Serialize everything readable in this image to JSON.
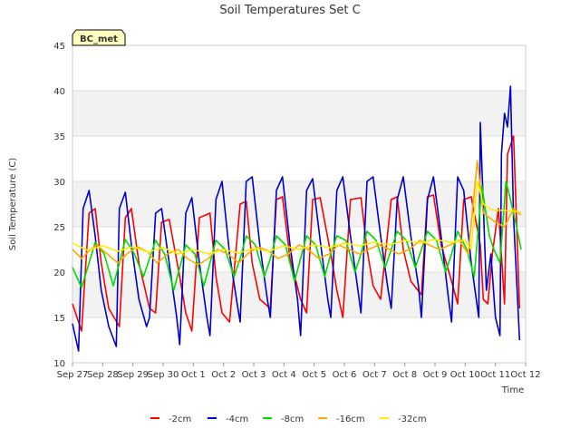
{
  "chart_data": {
    "type": "line",
    "title": "Soil Temperatures Set C",
    "xlabel": "Time",
    "ylabel": "Soil Temperature (C)",
    "ylim": [
      10,
      45
    ],
    "y_ticks": [
      10,
      15,
      20,
      25,
      30,
      35,
      40,
      45
    ],
    "x_tick_labels": [
      "Sep 27",
      "Sep 28",
      "Sep 29",
      "Sep 30",
      "Oct 1",
      "Oct 2",
      "Oct 3",
      "Oct 4",
      "Oct 5",
      "Oct 6",
      "Oct 7",
      "Oct 8",
      "Oct 9",
      "Oct 10",
      "Oct 11",
      "Oct 12"
    ],
    "xlim_days": [
      0,
      15
    ],
    "station_label": "BC_met",
    "grid": true,
    "legend_position": "bottom",
    "colors": {
      "band": "#f2f2f2",
      "grid": "#dddddd",
      "label_bg": "#ffffc0",
      "label_text": "#aa0000"
    },
    "series": [
      {
        "name": "-2cm",
        "color": "#ff0000",
        "x": [
          0.0,
          0.3,
          0.55,
          0.75,
          0.95,
          1.2,
          1.55,
          1.75,
          1.95,
          2.2,
          2.55,
          2.75,
          2.95,
          3.2,
          3.55,
          3.75,
          3.95,
          4.2,
          4.55,
          4.75,
          4.95,
          5.2,
          5.55,
          5.75,
          5.95,
          6.2,
          6.55,
          6.75,
          6.95,
          7.2,
          7.55,
          7.75,
          7.95,
          8.2,
          8.55,
          8.75,
          8.95,
          9.2,
          9.55,
          9.75,
          9.95,
          10.2,
          10.55,
          10.75,
          10.95,
          11.2,
          11.55,
          11.75,
          11.95,
          12.2,
          12.55,
          12.75,
          12.95,
          13.2,
          13.5,
          13.6,
          13.75,
          13.9,
          14.1,
          14.3,
          14.4,
          14.6,
          14.8
        ],
        "y": [
          16.5,
          13.5,
          26.5,
          27.0,
          21.0,
          16.0,
          14.0,
          26.0,
          27.0,
          21.0,
          16.0,
          15.5,
          25.5,
          25.8,
          19.5,
          15.5,
          13.5,
          26.0,
          26.5,
          19.5,
          15.5,
          14.5,
          27.5,
          27.8,
          21.0,
          17.0,
          16.0,
          28.0,
          28.3,
          21.5,
          17.0,
          15.5,
          28.0,
          28.2,
          22.0,
          18.0,
          15.0,
          28.0,
          28.2,
          22.5,
          18.5,
          17.0,
          28.0,
          28.3,
          22.5,
          19.0,
          17.5,
          28.3,
          28.5,
          23.0,
          19.0,
          16.5,
          28.0,
          28.3,
          23.0,
          17.0,
          16.5,
          22.0,
          27.0,
          16.5,
          33.0,
          35.0,
          16.0
        ]
      },
      {
        "name": "-4cm",
        "color": "#0000cc",
        "x": [
          0.0,
          0.2,
          0.35,
          0.55,
          0.75,
          0.95,
          1.2,
          1.45,
          1.55,
          1.75,
          1.95,
          2.2,
          2.45,
          2.55,
          2.75,
          2.95,
          3.2,
          3.45,
          3.55,
          3.75,
          3.95,
          4.2,
          4.45,
          4.55,
          4.75,
          4.95,
          5.2,
          5.45,
          5.55,
          5.75,
          5.95,
          6.2,
          6.45,
          6.55,
          6.75,
          6.95,
          7.2,
          7.45,
          7.55,
          7.75,
          7.95,
          8.2,
          8.45,
          8.55,
          8.75,
          8.95,
          9.2,
          9.45,
          9.55,
          9.75,
          9.95,
          10.2,
          10.45,
          10.55,
          10.75,
          10.95,
          11.2,
          11.45,
          11.55,
          11.75,
          11.95,
          12.2,
          12.45,
          12.55,
          12.75,
          12.95,
          13.2,
          13.45,
          13.5,
          13.7,
          13.85,
          14.0,
          14.15,
          14.2,
          14.3,
          14.4,
          14.5,
          14.6,
          14.8
        ],
        "y": [
          14.3,
          11.3,
          27.0,
          29.0,
          24.0,
          18.0,
          14.0,
          11.8,
          27.0,
          28.8,
          23.0,
          17.0,
          14.0,
          15.0,
          26.5,
          27.0,
          21.0,
          15.0,
          12.0,
          26.5,
          28.2,
          21.0,
          15.0,
          13.0,
          28.0,
          30.0,
          22.0,
          16.5,
          14.5,
          30.0,
          30.5,
          23.0,
          17.0,
          15.0,
          29.0,
          30.5,
          23.0,
          17.0,
          13.0,
          29.0,
          30.3,
          23.5,
          17.0,
          15.0,
          29.0,
          30.5,
          24.0,
          18.0,
          15.5,
          30.0,
          30.5,
          24.0,
          18.0,
          16.0,
          28.0,
          30.5,
          24.0,
          18.5,
          15.0,
          28.0,
          30.5,
          24.0,
          17.0,
          14.5,
          30.5,
          29.0,
          21.0,
          15.0,
          36.5,
          18.0,
          22.0,
          15.0,
          13.0,
          33.0,
          37.5,
          36.0,
          40.5,
          26.0,
          12.5
        ]
      },
      {
        "name": "-8cm",
        "color": "#00dd00",
        "x": [
          0.0,
          0.3,
          0.55,
          0.75,
          1.05,
          1.35,
          1.55,
          1.75,
          2.05,
          2.35,
          2.55,
          2.75,
          3.05,
          3.35,
          3.55,
          3.75,
          4.05,
          4.35,
          4.55,
          4.75,
          5.05,
          5.35,
          5.55,
          5.75,
          6.05,
          6.35,
          6.55,
          6.75,
          7.05,
          7.35,
          7.55,
          7.75,
          8.05,
          8.35,
          8.55,
          8.75,
          9.05,
          9.35,
          9.55,
          9.75,
          10.05,
          10.35,
          10.55,
          10.75,
          11.05,
          11.35,
          11.55,
          11.75,
          12.05,
          12.35,
          12.55,
          12.75,
          13.05,
          13.3,
          13.55,
          13.8,
          13.95,
          14.15,
          14.35,
          14.5,
          14.7,
          14.85
        ],
        "y": [
          20.5,
          18.3,
          21.0,
          23.3,
          22.0,
          18.5,
          21.0,
          23.6,
          22.0,
          19.5,
          21.5,
          23.5,
          22.0,
          18.0,
          20.5,
          23.0,
          22.0,
          18.5,
          21.0,
          23.5,
          22.5,
          19.5,
          21.5,
          24.0,
          23.0,
          19.5,
          21.5,
          24.0,
          23.0,
          19.0,
          21.5,
          24.0,
          23.0,
          19.5,
          22.0,
          24.0,
          23.5,
          20.0,
          22.0,
          24.5,
          23.5,
          20.5,
          22.5,
          24.5,
          23.5,
          20.5,
          22.5,
          24.5,
          23.5,
          20.0,
          22.0,
          24.5,
          22.5,
          19.5,
          29.5,
          24.0,
          22.5,
          21.0,
          30.0,
          28.0,
          25.0,
          22.5
        ]
      },
      {
        "name": "-16cm",
        "color": "#ffaa00",
        "x": [
          0.0,
          0.3,
          0.6,
          0.8,
          1.15,
          1.5,
          1.8,
          2.15,
          2.5,
          2.8,
          3.15,
          3.5,
          3.8,
          4.15,
          4.5,
          4.8,
          5.15,
          5.5,
          5.8,
          6.15,
          6.5,
          6.8,
          7.15,
          7.5,
          7.8,
          8.15,
          8.5,
          8.8,
          9.15,
          9.5,
          9.8,
          10.15,
          10.5,
          10.8,
          11.15,
          11.5,
          11.8,
          12.15,
          12.5,
          12.8,
          13.1,
          13.4,
          13.6,
          14.0,
          14.3,
          14.6,
          14.85
        ],
        "y": [
          22.5,
          21.5,
          22.5,
          23.0,
          22.0,
          21.0,
          22.0,
          22.8,
          22.2,
          21.0,
          22.0,
          22.5,
          21.5,
          20.8,
          21.5,
          22.5,
          22.0,
          21.0,
          22.0,
          22.8,
          22.3,
          21.5,
          22.0,
          23.0,
          22.5,
          21.5,
          22.0,
          23.0,
          22.5,
          22.0,
          22.5,
          23.0,
          22.5,
          22.0,
          22.5,
          23.5,
          23.0,
          22.5,
          23.0,
          23.5,
          22.0,
          32.3,
          26.5,
          25.5,
          25.0,
          27.0,
          26.3
        ]
      },
      {
        "name": "-32cm",
        "color": "#ffee00",
        "x": [
          0.0,
          0.5,
          1.0,
          1.5,
          2.0,
          2.5,
          3.0,
          3.5,
          4.0,
          4.5,
          5.0,
          5.5,
          6.0,
          6.5,
          7.0,
          7.5,
          8.0,
          8.5,
          9.0,
          9.5,
          10.0,
          10.5,
          11.0,
          11.5,
          12.0,
          12.5,
          13.0,
          13.2,
          13.4,
          13.6,
          13.8,
          14.0,
          14.3,
          14.6,
          14.85
        ],
        "y": [
          23.2,
          22.4,
          22.9,
          22.3,
          22.8,
          22.2,
          22.7,
          22.0,
          22.5,
          22.0,
          22.5,
          22.1,
          22.6,
          22.3,
          22.9,
          22.5,
          23.0,
          22.7,
          23.2,
          22.9,
          23.3,
          23.0,
          23.5,
          23.2,
          23.6,
          23.3,
          23.5,
          22.5,
          30.0,
          27.5,
          27.0,
          26.8,
          26.8,
          26.7,
          26.6
        ]
      }
    ]
  }
}
